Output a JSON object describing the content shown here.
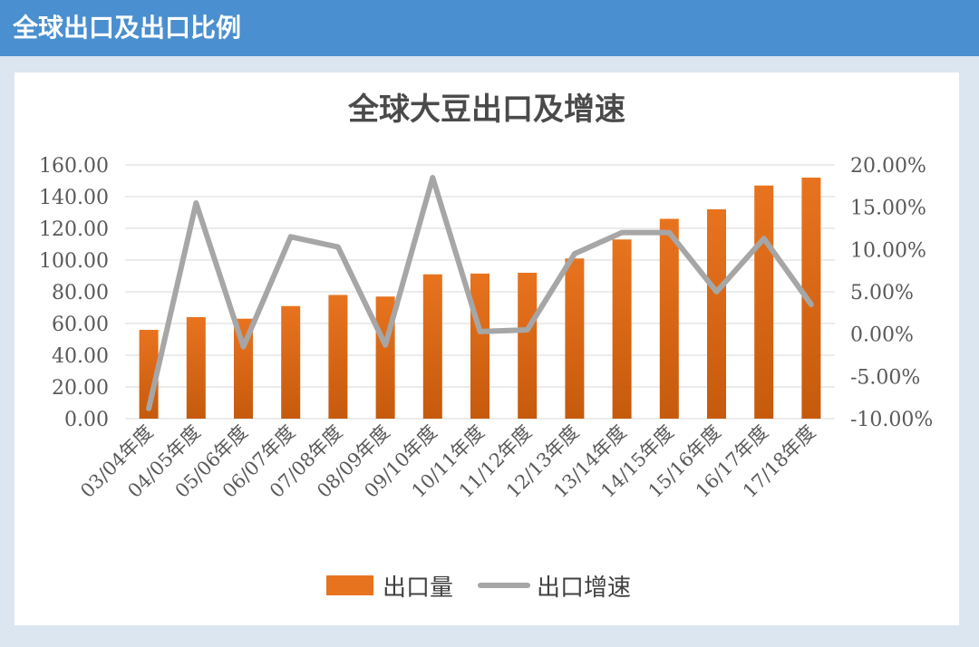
{
  "header": {
    "title": "全球出口及出口比例"
  },
  "colors": {
    "bar": "#e8731f",
    "bar_dark": "#c65a0c",
    "line": "#a6a6a6",
    "header": "#4a8fcf"
  },
  "chart_data": {
    "type": "bar",
    "title": "全球大豆出口及增速",
    "categories": [
      "03/04年度",
      "04/05年度",
      "05/06年度",
      "06/07年度",
      "07/08年度",
      "08/09年度",
      "09/10年度",
      "10/11年度",
      "11/12年度",
      "12/13年度",
      "13/14年度",
      "14/15年度",
      "15/16年度",
      "16/17年度",
      "17/18年度"
    ],
    "ylim": [
      0,
      160
    ],
    "yticks": [
      "0.00",
      "20.00",
      "40.00",
      "60.00",
      "80.00",
      "100.00",
      "120.00",
      "140.00",
      "160.00"
    ],
    "y2lim": [
      -10,
      20
    ],
    "y2ticks": [
      "-10.00%",
      "-5.00%",
      "0.00%",
      "5.00%",
      "10.00%",
      "15.00%",
      "20.00%"
    ],
    "grid": true,
    "legend_position": "bottom",
    "series": [
      {
        "name": "出口量",
        "type": "bar",
        "axis": "left",
        "values": [
          56,
          64,
          63,
          71,
          78,
          77,
          91,
          91.5,
          92,
          101,
          113,
          126,
          132,
          147,
          152
        ]
      },
      {
        "name": "出口增速",
        "type": "line",
        "axis": "right",
        "values": [
          -8.8,
          15.5,
          -1.5,
          11.5,
          10.3,
          -1.3,
          18.5,
          0.3,
          0.5,
          9.5,
          12.0,
          12.0,
          5.0,
          11.3,
          3.5
        ]
      }
    ]
  }
}
